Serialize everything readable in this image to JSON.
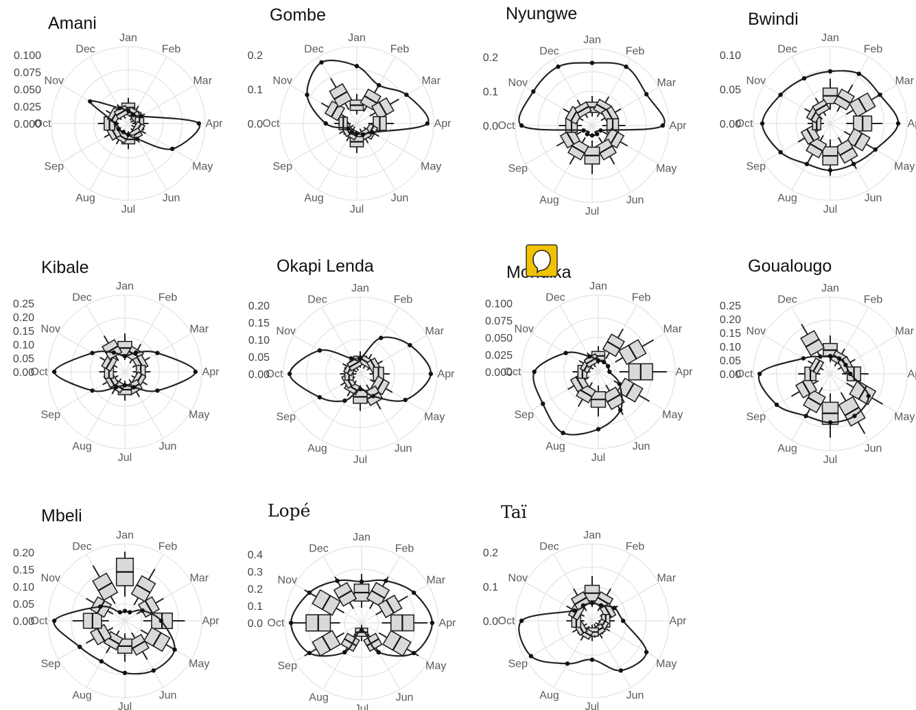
{
  "chart_data": [
    {
      "type": "polar",
      "title": "Amani",
      "months": [
        "Jan",
        "Feb",
        "Mar",
        "Apr",
        "May",
        "Jun",
        "Jul",
        "Aug",
        "Sep",
        "Oct",
        "Nov",
        "Dec"
      ],
      "yticks": [
        "0.100",
        "0.075",
        "0.050",
        "0.025",
        "0.000"
      ],
      "ylim": [
        0,
        0.1
      ],
      "density": [
        0.012,
        0.008,
        0.015,
        0.1,
        0.07,
        0.02,
        0.01,
        0.008,
        0.01,
        0.012,
        0.06,
        0.02
      ],
      "box_median": [
        0.02,
        0.012,
        0.01,
        0.012,
        0.012,
        0.015,
        0.02,
        0.018,
        0.022,
        0.025,
        0.02,
        0.015
      ]
    },
    {
      "type": "polar",
      "title": "Gombe",
      "months": [
        "Jan",
        "Feb",
        "Mar",
        "Apr",
        "May",
        "Jun",
        "Jul",
        "Aug",
        "Sep",
        "Oct",
        "Nov",
        "Dec"
      ],
      "yticks": [
        "0.2",
        "0.1",
        "0.0"
      ],
      "ylim": [
        0,
        0.25
      ],
      "density": [
        0.2,
        0.15,
        0.2,
        0.25,
        0.05,
        0.03,
        0.02,
        0.02,
        0.02,
        0.1,
        0.2,
        0.25
      ],
      "box_median": [
        0.06,
        0.1,
        0.11,
        0.08,
        0.05,
        0.04,
        0.06,
        0.03,
        0.03,
        0.04,
        0.09,
        0.12
      ]
    },
    {
      "type": "polar",
      "title": "Nyungwe",
      "months": [
        "Jan",
        "Feb",
        "Mar",
        "Apr",
        "May",
        "Jun",
        "Jul",
        "Aug",
        "Sep",
        "Oct",
        "Nov",
        "Dec"
      ],
      "yticks": [
        "0.2",
        "0.1",
        "0.0"
      ],
      "ylim": [
        0,
        0.25
      ],
      "density": [
        0.22,
        0.24,
        0.22,
        0.25,
        0.02,
        0.02,
        0.02,
        0.02,
        0.02,
        0.25,
        0.24,
        0.24
      ],
      "box_median": [
        0.06,
        0.07,
        0.07,
        0.07,
        0.09,
        0.1,
        0.11,
        0.1,
        0.09,
        0.07,
        0.07,
        0.06
      ]
    },
    {
      "type": "polar",
      "title": "Bwindi",
      "months": [
        "Jan",
        "Feb",
        "Mar",
        "Apr",
        "May",
        "Jun",
        "Jul",
        "Aug",
        "Sep",
        "Oct",
        "Nov",
        "Dec"
      ],
      "yticks": [
        "0.10",
        "0.05",
        "0.00"
      ],
      "ylim": [
        0,
        0.125
      ],
      "density": [
        0.09,
        0.1,
        0.1,
        0.12,
        0.09,
        0.08,
        0.08,
        0.08,
        0.1,
        0.12,
        0.1,
        0.09
      ],
      "box_median": [
        0.05,
        0.05,
        0.07,
        0.06,
        0.06,
        0.06,
        0.06,
        0.05,
        0.04,
        0.02,
        0.03,
        0.03
      ]
    },
    {
      "type": "polar",
      "title": "Kibale",
      "months": [
        "Jan",
        "Feb",
        "Mar",
        "Apr",
        "May",
        "Jun",
        "Jul",
        "Aug",
        "Sep",
        "Oct",
        "Nov",
        "Dec"
      ],
      "yticks": [
        "0.25",
        "0.20",
        "0.15",
        "0.10",
        "0.05",
        "0.00"
      ],
      "ylim": [
        0,
        0.3
      ],
      "density": [
        0.05,
        0.08,
        0.15,
        0.3,
        0.15,
        0.06,
        0.04,
        0.06,
        0.15,
        0.3,
        0.15,
        0.08
      ],
      "box_median": [
        0.1,
        0.08,
        0.07,
        0.06,
        0.06,
        0.07,
        0.07,
        0.06,
        0.06,
        0.06,
        0.07,
        0.11
      ]
    },
    {
      "type": "polar",
      "title": "Okapi Lenda",
      "months": [
        "Jan",
        "Feb",
        "Mar",
        "Apr",
        "May",
        "Jun",
        "Jul",
        "Aug",
        "Sep",
        "Oct",
        "Nov",
        "Dec"
      ],
      "yticks": [
        "0.20",
        "0.15",
        "0.10",
        "0.05",
        "0.00"
      ],
      "ylim": [
        0,
        0.25
      ],
      "density": [
        0.04,
        0.14,
        0.2,
        0.25,
        0.18,
        0.08,
        0.04,
        0.1,
        0.16,
        0.25,
        0.16,
        0.05
      ],
      "box_median": [
        0.04,
        0.04,
        0.05,
        0.06,
        0.08,
        0.09,
        0.08,
        0.05,
        0.04,
        0.03,
        0.03,
        0.03
      ]
    },
    {
      "type": "polar",
      "title": "Mondika",
      "months": [
        "Jan",
        "Feb",
        "Mar",
        "Apr",
        "May",
        "Jun",
        "Jul",
        "Aug",
        "Sep",
        "Oct",
        "Nov",
        "Dec"
      ],
      "yticks": [
        "0.100",
        "0.075",
        "0.050",
        "0.025",
        "0.000"
      ],
      "ylim": [
        0,
        0.1
      ],
      "density": [
        0.01,
        0.01,
        0.01,
        0.01,
        0.03,
        0.06,
        0.08,
        0.1,
        0.09,
        0.09,
        0.05,
        0.02
      ],
      "box_median": [
        0.02,
        0.045,
        0.06,
        0.065,
        0.055,
        0.045,
        0.04,
        0.035,
        0.03,
        0.02,
        0.015,
        0.015
      ]
    },
    {
      "type": "polar",
      "title": "Goualougo",
      "months": [
        "Jan",
        "Feb",
        "Mar",
        "Apr",
        "May",
        "Jun",
        "Jul",
        "Aug",
        "Sep",
        "Oct",
        "Nov",
        "Dec"
      ],
      "yticks": [
        "0.25",
        "0.20",
        "0.15",
        "0.10",
        "0.05",
        "0.00"
      ],
      "ylim": [
        0,
        0.3
      ],
      "density": [
        0.06,
        0.06,
        0.06,
        0.07,
        0.18,
        0.2,
        0.2,
        0.2,
        0.26,
        0.3,
        0.12,
        0.07
      ],
      "box_median": [
        0.1,
        0.07,
        0.07,
        0.1,
        0.17,
        0.2,
        0.18,
        0.14,
        0.12,
        0.08,
        0.06,
        0.16
      ]
    },
    {
      "type": "polar",
      "title": "Mbeli",
      "months": [
        "Jan",
        "Feb",
        "Mar",
        "Apr",
        "May",
        "Jun",
        "Jul",
        "Aug",
        "Sep",
        "Oct",
        "Nov",
        "Dec"
      ],
      "yticks": [
        "0.20",
        "0.15",
        "0.10",
        "0.05",
        "0.00"
      ],
      "ylim": [
        0,
        0.25
      ],
      "density": [
        0.02,
        0.02,
        0.06,
        0.12,
        0.2,
        0.2,
        0.18,
        0.16,
        0.18,
        0.25,
        0.09,
        0.02
      ],
      "box_median": [
        0.19,
        0.14,
        0.1,
        0.14,
        0.14,
        0.1,
        0.09,
        0.08,
        0.1,
        0.12,
        0.1,
        0.15
      ]
    },
    {
      "type": "polar",
      "title": "Lopé",
      "months": [
        "Jan",
        "Feb",
        "Mar",
        "Apr",
        "May",
        "Jun",
        "Jul",
        "Aug",
        "Sep",
        "Oct",
        "Nov",
        "Dec"
      ],
      "yticks": [
        "0.4",
        "0.3",
        "0.2",
        "0.1",
        "0.0"
      ],
      "ylim": [
        0,
        0.45
      ],
      "density": [
        0.25,
        0.3,
        0.38,
        0.45,
        0.38,
        0.2,
        0.02,
        0.2,
        0.38,
        0.45,
        0.38,
        0.3
      ],
      "box_median": [
        0.2,
        0.22,
        0.22,
        0.28,
        0.28,
        0.14,
        0.04,
        0.14,
        0.28,
        0.3,
        0.28,
        0.22
      ]
    },
    {
      "type": "polar",
      "title": "Taï",
      "months": [
        "Jan",
        "Feb",
        "Mar",
        "Apr",
        "May",
        "Jun",
        "Jul",
        "Aug",
        "Sep",
        "Oct",
        "Nov",
        "Dec"
      ],
      "yticks": [
        "0.2",
        "0.1",
        "0.0"
      ],
      "ylim": [
        0,
        0.25
      ],
      "density": [
        0.05,
        0.05,
        0.08,
        0.1,
        0.22,
        0.2,
        0.13,
        0.17,
        0.25,
        0.25,
        0.06,
        0.05
      ],
      "box_median": [
        0.1,
        0.08,
        0.06,
        0.04,
        0.03,
        0.03,
        0.03,
        0.04,
        0.04,
        0.05,
        0.06,
        0.08
      ]
    }
  ],
  "marker": {
    "icon": "sticker-icon",
    "color": "#f2c200"
  }
}
